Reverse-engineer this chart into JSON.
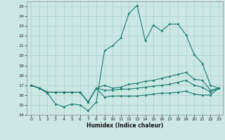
{
  "title": "",
  "xlabel": "Humidex (Indice chaleur)",
  "xlim": [
    -0.5,
    23.5
  ],
  "ylim": [
    14,
    25.5
  ],
  "yticks": [
    14,
    15,
    16,
    17,
    18,
    19,
    20,
    21,
    22,
    23,
    24,
    25
  ],
  "xticks": [
    0,
    1,
    2,
    3,
    4,
    5,
    6,
    7,
    8,
    9,
    10,
    11,
    12,
    13,
    14,
    15,
    16,
    17,
    18,
    19,
    20,
    21,
    22,
    23
  ],
  "background_color": "#cce8e5",
  "grid_color": "#aacfcc",
  "line_color": "#1a7a6e",
  "line1": [
    17.0,
    16.7,
    16.2,
    15.1,
    14.8,
    15.1,
    15.0,
    14.4,
    15.3,
    20.5,
    21.0,
    21.8,
    24.3,
    25.1,
    21.5,
    23.1,
    22.5,
    23.2,
    23.2,
    22.1,
    20.1,
    19.2,
    17.0,
    16.7
  ],
  "line2": [
    17.0,
    16.7,
    16.3,
    16.3,
    16.3,
    16.3,
    16.3,
    15.3,
    16.7,
    17.0,
    16.7,
    16.8,
    17.1,
    17.2,
    17.4,
    17.5,
    17.7,
    17.9,
    18.1,
    18.3,
    17.6,
    17.5,
    16.5,
    16.7
  ],
  "line3": [
    17.0,
    16.7,
    16.3,
    16.3,
    16.3,
    16.3,
    16.3,
    15.3,
    16.7,
    16.5,
    16.5,
    16.6,
    16.6,
    16.7,
    16.8,
    16.9,
    17.0,
    17.1,
    17.3,
    17.5,
    17.0,
    16.8,
    16.3,
    16.7
  ],
  "line4": [
    17.0,
    16.7,
    16.3,
    16.3,
    16.3,
    16.3,
    16.3,
    15.3,
    16.7,
    15.8,
    15.9,
    15.9,
    15.9,
    15.9,
    16.0,
    16.1,
    16.2,
    16.2,
    16.3,
    16.4,
    16.1,
    16.0,
    16.0,
    16.7
  ]
}
